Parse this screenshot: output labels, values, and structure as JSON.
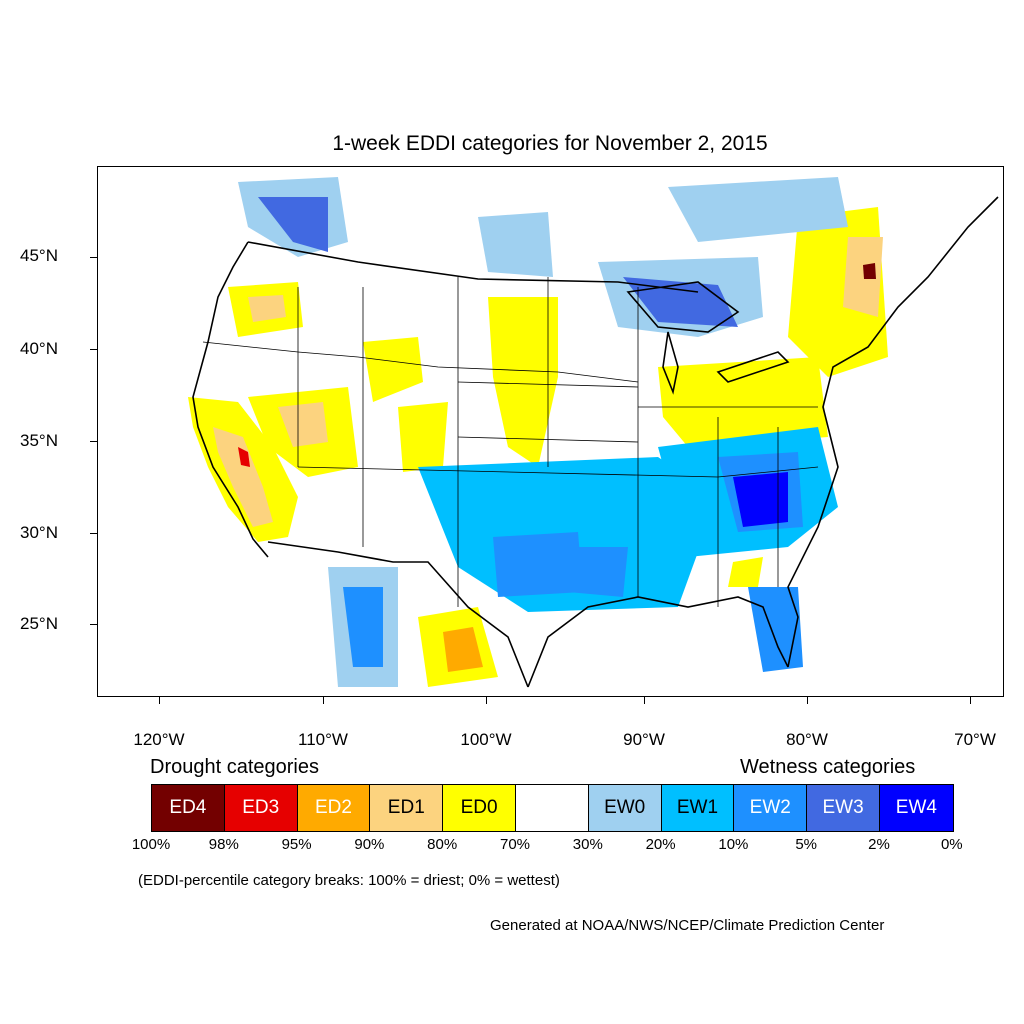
{
  "title": "1-week EDDI categories for November 2, 2015",
  "map": {
    "lat_labels": [
      "45°N",
      "40°N",
      "35°N",
      "30°N",
      "25°N"
    ],
    "lon_labels": [
      "120°W",
      "110°W",
      "100°W",
      "90°W",
      "80°W",
      "70°W"
    ]
  },
  "legend": {
    "drought_heading": "Drought categories",
    "wetness_heading": "Wetness categories",
    "categories": [
      {
        "label": "ED4",
        "color": "#730000",
        "text_color": "#ffffff"
      },
      {
        "label": "ED3",
        "color": "#e60000",
        "text_color": "#ffffff"
      },
      {
        "label": "ED2",
        "color": "#ffaa00",
        "text_color": "#ffffff"
      },
      {
        "label": "ED1",
        "color": "#fcd37f",
        "text_color": "#000000"
      },
      {
        "label": "ED0",
        "color": "#ffff00",
        "text_color": "#000000"
      },
      {
        "label": "",
        "color": "#ffffff",
        "text_color": "#000000"
      },
      {
        "label": "EW0",
        "color": "#9fd0f0",
        "text_color": "#000000"
      },
      {
        "label": "EW1",
        "color": "#00bfff",
        "text_color": "#000000"
      },
      {
        "label": "EW2",
        "color": "#1e90ff",
        "text_color": "#ffffff"
      },
      {
        "label": "EW3",
        "color": "#4169e1",
        "text_color": "#ffffff"
      },
      {
        "label": "EW4",
        "color": "#0000ff",
        "text_color": "#ffffff"
      }
    ],
    "breaks": [
      "100%",
      "98%",
      "95%",
      "90%",
      "80%",
      "70%",
      "30%",
      "20%",
      "10%",
      "5%",
      "2%",
      "0%"
    ],
    "note": "(EDDI-percentile category breaks: 100% = driest; 0% = wettest)"
  },
  "credit": "Generated at NOAA/NWS/NCEP/Climate Prediction Center"
}
